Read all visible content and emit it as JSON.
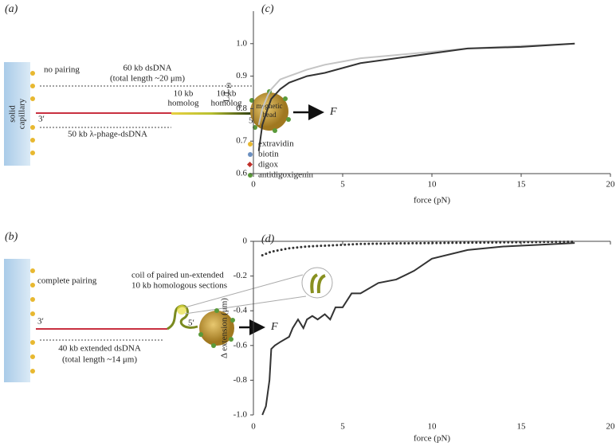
{
  "panels": {
    "a": {
      "label": "(a)",
      "pairing": "no pairing",
      "dsdna": "60 kb dsDNA",
      "dsdna_length": "(total length ~20 μm)",
      "homolog_1": "10 kb",
      "homolog_1b": "homolog",
      "homolog_2": "10 kb",
      "homolog_2b": "homolog",
      "bead_1": "megnetic",
      "bead_2": "bead",
      "force": "F",
      "end_3": "3′",
      "end_5": "5′",
      "phage": "50 kb λ-phage-dsDNA",
      "capillary_1": "solid",
      "capillary_2": "capillary",
      "legend": [
        {
          "label": "extravidin",
          "color": "#e8b830"
        },
        {
          "label": "biotin",
          "color": "#6b8fc0"
        },
        {
          "label": "digox",
          "color": "#c0302a"
        },
        {
          "label": "antidigoxigenin",
          "color": "#5a9a3a"
        }
      ]
    },
    "b": {
      "label": "(b)",
      "pairing": "complete pairing",
      "coil_1": "coil of paired un-extended",
      "coil_2": "10 kb homologous sections",
      "end_3": "3′",
      "end_5": "5′",
      "force": "F",
      "extended": "40 kb extended dsDNA",
      "extended_length": "(total length ~14 μm)"
    }
  },
  "chart_data": [
    {
      "type": "line",
      "title": "(c)",
      "x_label": "force (pN)",
      "y_label": "L/L",
      "y_label_subscript": "19",
      "x": [
        0.3,
        0.5,
        0.8,
        1,
        1.5,
        2,
        2.5,
        3,
        4,
        5,
        6,
        8,
        10,
        12,
        15,
        18
      ],
      "series": [
        {
          "color": "#c4c4c4",
          "values": [
            0.75,
            0.8,
            0.84,
            0.86,
            0.89,
            0.9,
            0.91,
            0.92,
            0.935,
            0.945,
            0.955,
            0.965,
            0.975,
            0.985,
            0.993,
            1.0
          ]
        },
        {
          "color": "#333333",
          "values": [
            0.67,
            0.75,
            0.8,
            0.83,
            0.86,
            0.88,
            0.89,
            0.9,
            0.91,
            0.925,
            0.94,
            0.955,
            0.97,
            0.985,
            0.99,
            1.0
          ]
        }
      ],
      "xlim": [
        0,
        20
      ],
      "xticks": [
        0,
        5,
        10,
        15,
        20
      ],
      "ylim": [
        0.6,
        1.1
      ],
      "yticks": [
        0.6,
        0.7,
        0.8,
        0.9,
        {
          "value": 1,
          "label": "1.0"
        }
      ]
    },
    {
      "type": "line",
      "title": "(d)",
      "x_label": "force (pN)",
      "y_label": "Δ extension (μm)",
      "series": [
        {
          "color": "#333333",
          "dash": "dotted",
          "x": [
            0.5,
            1,
            1.5,
            2,
            3,
            4,
            5,
            6,
            8,
            10,
            12,
            14,
            16,
            18
          ],
          "values": [
            -0.08,
            -0.06,
            -0.05,
            -0.04,
            -0.03,
            -0.025,
            -0.02,
            -0.015,
            -0.012,
            -0.01,
            -0.008,
            -0.006,
            -0.004,
            -0.002
          ]
        },
        {
          "color": "#333333",
          "x": [
            0.5,
            0.7,
            0.9,
            1,
            1.2,
            1.5,
            2,
            2.2,
            2.5,
            2.8,
            3,
            3.3,
            3.6,
            4,
            4.3,
            4.6,
            5,
            5.5,
            6,
            7,
            8,
            9,
            10,
            12,
            14,
            16,
            18
          ],
          "values": [
            -1,
            -0.95,
            -0.8,
            -0.62,
            -0.6,
            -0.58,
            -0.55,
            -0.5,
            -0.45,
            -0.5,
            -0.45,
            -0.43,
            -0.45,
            -0.42,
            -0.45,
            -0.38,
            -0.38,
            -0.3,
            -0.3,
            -0.24,
            -0.22,
            -0.17,
            -0.1,
            -0.05,
            -0.03,
            -0.02,
            -0.01
          ]
        }
      ],
      "xlim": [
        0,
        20
      ],
      "xticks": [
        0,
        5,
        10,
        15,
        20
      ],
      "ylim": [
        -1,
        0
      ],
      "yticks": [
        {
          "value": -1,
          "label": "-1.0"
        },
        -0.8,
        -0.6,
        -0.4,
        -0.2,
        0
      ]
    }
  ]
}
